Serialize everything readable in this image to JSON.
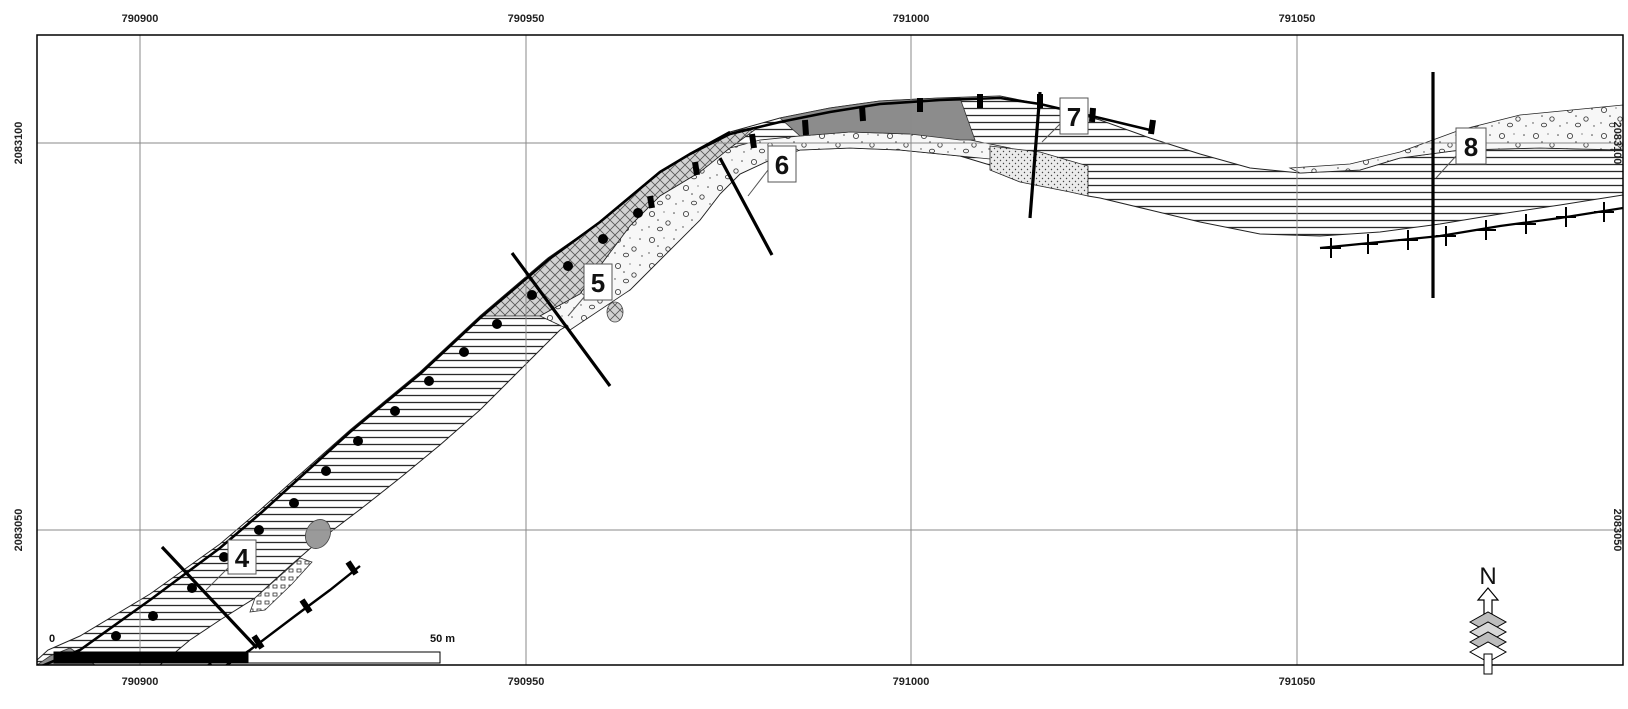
{
  "map": {
    "easting_labels_top": [
      "790900",
      "790950",
      "791000",
      "791050"
    ],
    "easting_labels_bottom": [
      "790900",
      "790950",
      "791000",
      "791050"
    ],
    "northing_labels_left": [
      "2083100",
      "2083050"
    ],
    "northing_labels_right": [
      "2083100",
      "2083050"
    ],
    "profiles": [
      {
        "label": "4"
      },
      {
        "label": "5"
      },
      {
        "label": "6"
      },
      {
        "label": "7"
      },
      {
        "label": "8"
      }
    ],
    "scale_bar": {
      "start_label": "0",
      "end_label": "50 m"
    },
    "north_arrow": {
      "label": "N",
      "icon": "north-arrow-icon"
    },
    "colors": {
      "frame": "#000000",
      "grid": "#8a8a8a",
      "dark_fill": "#8a8a8a",
      "light_fill": "#f2f2f2",
      "hatch": "#333333"
    }
  }
}
